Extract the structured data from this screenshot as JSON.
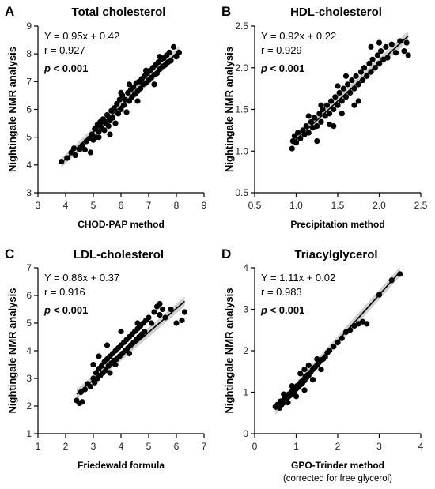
{
  "chart_data": [
    {
      "panel": "A",
      "type": "scatter",
      "title": "Total cholesterol",
      "xlabel": "CHOD-PAP method",
      "ylabel": "Nightingale NMR analysis",
      "xlim": [
        3,
        9
      ],
      "ylim": [
        3,
        9
      ],
      "xticks": [
        3,
        4,
        5,
        6,
        7,
        8,
        9
      ],
      "yticks": [
        3,
        4,
        5,
        6,
        7,
        8,
        9
      ],
      "fit": {
        "slope": 0.95,
        "intercept": 0.42
      },
      "equation": "Y = 0.95x + 0.42",
      "r": "r = 0.927",
      "p_label": "p",
      "p_value": " < 0.001",
      "points": [
        [
          3.85,
          4.12
        ],
        [
          4.05,
          4.25
        ],
        [
          4.2,
          4.45
        ],
        [
          4.3,
          4.6
        ],
        [
          4.35,
          4.35
        ],
        [
          4.5,
          4.55
        ],
        [
          4.6,
          4.7
        ],
        [
          4.7,
          4.55
        ],
        [
          4.75,
          4.85
        ],
        [
          4.85,
          4.95
        ],
        [
          4.9,
          4.45
        ],
        [
          4.95,
          5.1
        ],
        [
          5.0,
          4.9
        ],
        [
          5.05,
          5.3
        ],
        [
          5.1,
          5.0
        ],
        [
          5.15,
          5.45
        ],
        [
          5.2,
          5.2
        ],
        [
          5.25,
          5.55
        ],
        [
          5.3,
          5.35
        ],
        [
          5.35,
          5.65
        ],
        [
          5.4,
          5.25
        ],
        [
          5.45,
          5.5
        ],
        [
          5.5,
          5.8
        ],
        [
          5.55,
          5.4
        ],
        [
          5.6,
          5.6
        ],
        [
          5.65,
          5.95
        ],
        [
          5.7,
          5.7
        ],
        [
          5.75,
          6.05
        ],
        [
          5.8,
          5.5
        ],
        [
          5.85,
          6.2
        ],
        [
          5.9,
          5.85
        ],
        [
          5.95,
          6.35
        ],
        [
          6.0,
          6.0
        ],
        [
          6.05,
          6.5
        ],
        [
          6.1,
          6.15
        ],
        [
          6.15,
          6.35
        ],
        [
          6.2,
          5.9
        ],
        [
          6.25,
          6.6
        ],
        [
          6.3,
          6.3
        ],
        [
          6.35,
          6.7
        ],
        [
          6.4,
          6.45
        ],
        [
          6.45,
          6.8
        ],
        [
          6.5,
          6.55
        ],
        [
          6.55,
          6.95
        ],
        [
          6.6,
          6.65
        ],
        [
          6.65,
          7.0
        ],
        [
          6.7,
          6.75
        ],
        [
          6.75,
          7.1
        ],
        [
          6.8,
          6.9
        ],
        [
          6.85,
          7.2
        ],
        [
          6.9,
          6.95
        ],
        [
          6.95,
          7.3
        ],
        [
          7.0,
          7.05
        ],
        [
          7.05,
          7.4
        ],
        [
          7.1,
          7.15
        ],
        [
          7.15,
          7.5
        ],
        [
          7.2,
          7.25
        ],
        [
          7.25,
          7.6
        ],
        [
          7.3,
          7.3
        ],
        [
          7.35,
          7.7
        ],
        [
          7.4,
          7.45
        ],
        [
          7.45,
          7.8
        ],
        [
          7.5,
          7.55
        ],
        [
          7.55,
          7.85
        ],
        [
          7.6,
          7.6
        ],
        [
          7.65,
          7.95
        ],
        [
          7.7,
          7.7
        ],
        [
          7.75,
          8.05
        ],
        [
          7.8,
          7.75
        ],
        [
          7.9,
          8.25
        ],
        [
          8.0,
          7.9
        ],
        [
          8.1,
          8.05
        ],
        [
          5.2,
          5.0
        ],
        [
          5.6,
          5.1
        ],
        [
          6.0,
          6.6
        ],
        [
          6.3,
          6.9
        ],
        [
          6.6,
          6.3
        ],
        [
          6.9,
          7.4
        ],
        [
          7.2,
          6.9
        ],
        [
          7.4,
          7.9
        ]
      ]
    },
    {
      "panel": "B",
      "type": "scatter",
      "title": "HDL-cholesterol",
      "xlabel": "Precipitation method",
      "ylabel": "Nightingale NMR analysis",
      "xlim": [
        0.5,
        2.5
      ],
      "ylim": [
        0.5,
        2.5
      ],
      "xticks": [
        0.5,
        1.0,
        1.5,
        2.0,
        2.5
      ],
      "yticks": [
        0.5,
        1.0,
        1.5,
        2.0,
        2.5
      ],
      "tick_labels_x": [
        "0.5",
        "1.0",
        "1.5",
        "2.0",
        "2.5"
      ],
      "tick_labels_y": [
        "0.5",
        "1.0",
        "1.5",
        "2.0",
        "2.5"
      ],
      "fit": {
        "slope": 0.92,
        "intercept": 0.22
      },
      "equation": "Y = 0.92x + 0.22",
      "r": "r = 0.929",
      "p_label": "p",
      "p_value": " < 0.001",
      "points": [
        [
          0.95,
          1.03
        ],
        [
          0.96,
          1.12
        ],
        [
          0.98,
          1.18
        ],
        [
          1.0,
          1.1
        ],
        [
          1.02,
          1.22
        ],
        [
          1.05,
          1.15
        ],
        [
          1.08,
          1.25
        ],
        [
          1.1,
          1.2
        ],
        [
          1.12,
          1.3
        ],
        [
          1.15,
          1.22
        ],
        [
          1.18,
          1.35
        ],
        [
          1.2,
          1.28
        ],
        [
          1.22,
          1.4
        ],
        [
          1.25,
          1.3
        ],
        [
          1.28,
          1.45
        ],
        [
          1.3,
          1.35
        ],
        [
          1.32,
          1.5
        ],
        [
          1.35,
          1.42
        ],
        [
          1.37,
          1.55
        ],
        [
          1.4,
          1.45
        ],
        [
          1.42,
          1.6
        ],
        [
          1.45,
          1.5
        ],
        [
          1.47,
          1.65
        ],
        [
          1.5,
          1.55
        ],
        [
          1.52,
          1.7
        ],
        [
          1.55,
          1.6
        ],
        [
          1.57,
          1.75
        ],
        [
          1.6,
          1.65
        ],
        [
          1.62,
          1.8
        ],
        [
          1.65,
          1.7
        ],
        [
          1.67,
          1.85
        ],
        [
          1.7,
          1.75
        ],
        [
          1.72,
          1.9
        ],
        [
          1.75,
          1.8
        ],
        [
          1.78,
          1.95
        ],
        [
          1.8,
          1.85
        ],
        [
          1.82,
          2.0
        ],
        [
          1.85,
          1.9
        ],
        [
          1.88,
          2.05
        ],
        [
          1.9,
          1.95
        ],
        [
          1.92,
          2.1
        ],
        [
          1.95,
          2.0
        ],
        [
          1.98,
          2.15
        ],
        [
          2.0,
          2.05
        ],
        [
          2.02,
          2.2
        ],
        [
          2.05,
          2.1
        ],
        [
          2.08,
          2.25
        ],
        [
          2.1,
          2.12
        ],
        [
          2.15,
          2.28
        ],
        [
          2.2,
          2.18
        ],
        [
          2.25,
          2.32
        ],
        [
          2.3,
          2.2
        ],
        [
          2.33,
          2.3
        ],
        [
          2.35,
          2.15
        ],
        [
          1.25,
          1.12
        ],
        [
          1.4,
          1.32
        ],
        [
          1.55,
          1.45
        ],
        [
          1.7,
          1.55
        ],
        [
          1.3,
          1.55
        ],
        [
          1.5,
          1.78
        ],
        [
          1.9,
          2.25
        ],
        [
          2.0,
          2.3
        ],
        [
          1.15,
          1.42
        ],
        [
          1.45,
          1.3
        ],
        [
          1.6,
          1.9
        ],
        [
          1.75,
          1.6
        ]
      ]
    },
    {
      "panel": "C",
      "type": "scatter",
      "title": "LDL-cholesterol",
      "xlabel": "Friedewald formula",
      "ylabel": "Nightingale NMR analysis",
      "xlim": [
        1,
        7
      ],
      "ylim": [
        1,
        7
      ],
      "xticks": [
        1,
        2,
        3,
        4,
        5,
        6,
        7
      ],
      "yticks": [
        1,
        2,
        3,
        4,
        5,
        6,
        7
      ],
      "fit": {
        "slope": 0.86,
        "intercept": 0.37
      },
      "equation": "Y = 0.86x + 0.37",
      "r": "r = 0.916",
      "p_label": "p",
      "p_value": " < 0.001",
      "points": [
        [
          2.4,
          2.2
        ],
        [
          2.5,
          2.1
        ],
        [
          2.6,
          2.15
        ],
        [
          2.55,
          2.5
        ],
        [
          2.7,
          2.6
        ],
        [
          2.8,
          2.8
        ],
        [
          2.9,
          2.7
        ],
        [
          3.0,
          3.0
        ],
        [
          3.05,
          2.85
        ],
        [
          3.1,
          3.2
        ],
        [
          3.15,
          3.0
        ],
        [
          3.2,
          3.35
        ],
        [
          3.25,
          3.1
        ],
        [
          3.3,
          3.45
        ],
        [
          3.35,
          3.2
        ],
        [
          3.4,
          3.6
        ],
        [
          3.45,
          3.3
        ],
        [
          3.5,
          3.7
        ],
        [
          3.55,
          3.45
        ],
        [
          3.6,
          3.8
        ],
        [
          3.65,
          3.55
        ],
        [
          3.7,
          3.9
        ],
        [
          3.75,
          3.65
        ],
        [
          3.8,
          4.0
        ],
        [
          3.85,
          3.7
        ],
        [
          3.9,
          4.1
        ],
        [
          3.95,
          3.8
        ],
        [
          4.0,
          4.2
        ],
        [
          4.05,
          3.9
        ],
        [
          4.1,
          4.3
        ],
        [
          4.15,
          4.0
        ],
        [
          4.2,
          4.4
        ],
        [
          4.25,
          4.1
        ],
        [
          4.3,
          4.5
        ],
        [
          4.35,
          4.2
        ],
        [
          4.4,
          4.6
        ],
        [
          4.45,
          4.3
        ],
        [
          4.5,
          4.7
        ],
        [
          4.55,
          4.4
        ],
        [
          4.6,
          4.8
        ],
        [
          4.65,
          4.5
        ],
        [
          4.7,
          4.9
        ],
        [
          4.75,
          4.6
        ],
        [
          4.8,
          5.0
        ],
        [
          4.85,
          4.7
        ],
        [
          4.9,
          5.1
        ],
        [
          5.0,
          5.2
        ],
        [
          5.1,
          5.0
        ],
        [
          5.2,
          5.4
        ],
        [
          5.3,
          5.6
        ],
        [
          5.4,
          5.3
        ],
        [
          5.5,
          5.5
        ],
        [
          5.6,
          5.2
        ],
        [
          5.8,
          5.5
        ],
        [
          6.0,
          5.0
        ],
        [
          6.2,
          5.1
        ],
        [
          6.3,
          5.4
        ],
        [
          5.4,
          5.7
        ],
        [
          3.2,
          3.8
        ],
        [
          3.5,
          4.2
        ],
        [
          3.8,
          3.5
        ],
        [
          4.0,
          4.7
        ],
        [
          4.3,
          3.9
        ],
        [
          3.0,
          3.5
        ],
        [
          3.6,
          3.2
        ],
        [
          4.6,
          5.0
        ]
      ]
    },
    {
      "panel": "D",
      "type": "scatter",
      "title": "Triacylglycerol",
      "xlabel": "GPO-Trinder method",
      "xlabel_note": "(corrected for free glycerol)",
      "ylabel": "Nightingale NMR analysis",
      "xlim": [
        0,
        4
      ],
      "ylim": [
        0,
        4
      ],
      "xticks": [
        0,
        1,
        2,
        3,
        4
      ],
      "yticks": [
        0,
        1,
        2,
        3,
        4
      ],
      "fit": {
        "slope": 1.11,
        "intercept": 0.02
      },
      "equation": "Y = 1.11x + 0.02",
      "r": "r = 0.983",
      "p_label": "p",
      "p_value": " < 0.001",
      "points": [
        [
          0.5,
          0.65
        ],
        [
          0.55,
          0.7
        ],
        [
          0.6,
          0.62
        ],
        [
          0.62,
          0.78
        ],
        [
          0.65,
          0.7
        ],
        [
          0.68,
          0.8
        ],
        [
          0.7,
          0.75
        ],
        [
          0.72,
          0.85
        ],
        [
          0.75,
          0.82
        ],
        [
          0.78,
          0.9
        ],
        [
          0.8,
          0.88
        ],
        [
          0.82,
          0.95
        ],
        [
          0.85,
          0.92
        ],
        [
          0.88,
          1.0
        ],
        [
          0.9,
          0.98
        ],
        [
          0.92,
          1.05
        ],
        [
          0.95,
          1.02
        ],
        [
          0.98,
          1.1
        ],
        [
          1.0,
          1.08
        ],
        [
          1.02,
          1.15
        ],
        [
          1.05,
          1.12
        ],
        [
          1.08,
          1.2
        ],
        [
          1.1,
          1.18
        ],
        [
          1.12,
          1.25
        ],
        [
          1.15,
          1.22
        ],
        [
          1.18,
          1.3
        ],
        [
          1.2,
          1.28
        ],
        [
          1.22,
          1.38
        ],
        [
          1.25,
          1.35
        ],
        [
          1.28,
          1.42
        ],
        [
          1.3,
          1.4
        ],
        [
          1.35,
          1.48
        ],
        [
          1.4,
          1.55
        ],
        [
          1.45,
          1.6
        ],
        [
          1.5,
          1.65
        ],
        [
          1.55,
          1.72
        ],
        [
          1.6,
          1.78
        ],
        [
          1.65,
          1.8
        ],
        [
          1.7,
          1.85
        ],
        [
          1.75,
          1.95
        ],
        [
          1.8,
          2.0
        ],
        [
          1.9,
          2.1
        ],
        [
          2.0,
          2.2
        ],
        [
          2.1,
          2.3
        ],
        [
          2.2,
          2.45
        ],
        [
          2.3,
          2.5
        ],
        [
          2.4,
          2.6
        ],
        [
          2.5,
          2.65
        ],
        [
          2.6,
          2.7
        ],
        [
          2.7,
          2.65
        ],
        [
          3.0,
          3.35
        ],
        [
          3.3,
          3.7
        ],
        [
          3.5,
          3.85
        ],
        [
          0.9,
          1.15
        ],
        [
          1.0,
          0.9
        ],
        [
          1.2,
          1.05
        ],
        [
          1.4,
          1.3
        ],
        [
          1.6,
          1.55
        ],
        [
          1.2,
          1.55
        ],
        [
          0.7,
          0.95
        ],
        [
          1.1,
          1.45
        ],
        [
          1.5,
          1.8
        ],
        [
          1.3,
          1.65
        ],
        [
          0.8,
          0.75
        ]
      ]
    }
  ]
}
